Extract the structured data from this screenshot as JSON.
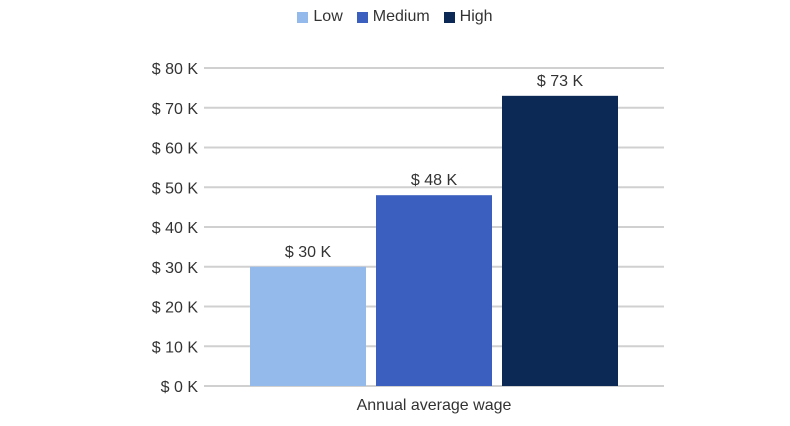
{
  "chart_data": {
    "type": "bar",
    "categories": [
      "Annual average wage"
    ],
    "series": [
      {
        "name": "Low",
        "values": [
          30
        ],
        "label": "$ 30 K",
        "color": "#93baea"
      },
      {
        "name": "Medium",
        "values": [
          48
        ],
        "label": "$ 48 K",
        "color": "#3a5fbe"
      },
      {
        "name": "High",
        "values": [
          73
        ],
        "label": "$ 73 K",
        "color": "#0c2855"
      }
    ],
    "xlabel": "Annual average wage",
    "ylabel": "",
    "ylim": [
      0,
      80
    ],
    "yticks": [
      0,
      10,
      20,
      30,
      40,
      50,
      60,
      70,
      80
    ],
    "ytick_labels": [
      "$ 0 K",
      "$ 10 K",
      "$ 20 K",
      "$ 30 K",
      "$ 40 K",
      "$ 50 K",
      "$ 60 K",
      "$ 70 K",
      "$ 80 K"
    ],
    "legend_position": "top-center",
    "grid": true
  }
}
